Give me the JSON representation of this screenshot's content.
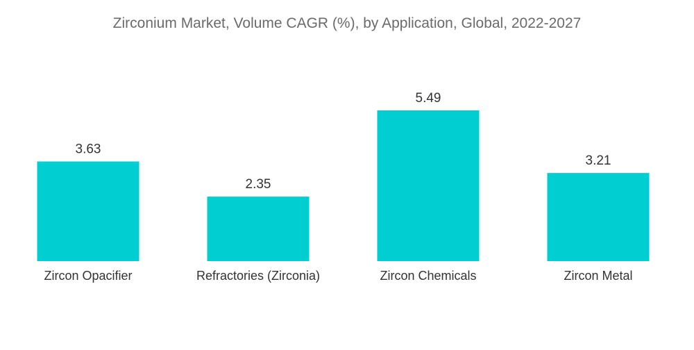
{
  "chart_data": {
    "type": "bar",
    "title": "Zirconium Market, Volume CAGR (%), by Application, Global, 2022-2027",
    "categories": [
      "Zircon Opacifier",
      "Refractories (Zirconia)",
      "Zircon Chemicals",
      "Zircon Metal"
    ],
    "values": [
      3.63,
      2.35,
      5.49,
      3.21
    ],
    "value_labels": [
      "3.63",
      "2.35",
      "5.49",
      "3.21"
    ],
    "ylim": [
      0,
      5.49
    ],
    "grid": false,
    "legend": "none",
    "bar_color": "#00CED1"
  }
}
